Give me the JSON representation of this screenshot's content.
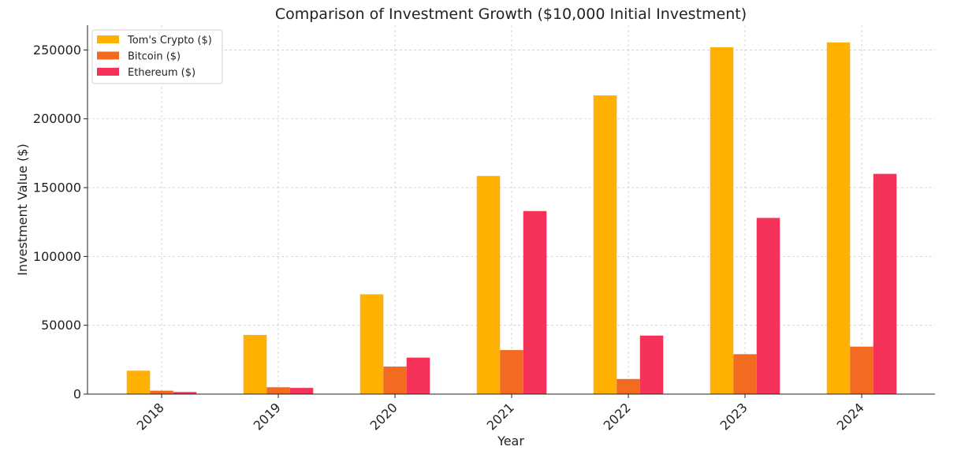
{
  "chart_data": {
    "type": "bar",
    "title": "Comparison of Investment Growth ($10,000 Initial Investment)",
    "xlabel": "Year",
    "ylabel": "Investment Value ($)",
    "categories": [
      "2018",
      "2019",
      "2020",
      "2021",
      "2022",
      "2023",
      "2024"
    ],
    "series": [
      {
        "name": "Tom's Crypto ($)",
        "color": "#ffb000",
        "values": [
          17000,
          43000,
          72500,
          158500,
          217000,
          252000,
          255500
        ]
      },
      {
        "name": "Bitcoin ($)",
        "color": "#f26b21",
        "values": [
          2500,
          5000,
          20000,
          32000,
          11000,
          29000,
          34500
        ]
      },
      {
        "name": "Ethereum ($)",
        "color": "#f5325a",
        "values": [
          1500,
          4500,
          26500,
          133000,
          42500,
          128000,
          160000
        ]
      }
    ],
    "ylim": [
      0,
      268000
    ],
    "yticks": [
      0,
      50000,
      100000,
      150000,
      200000,
      250000
    ],
    "ytick_labels": [
      "0",
      "50000",
      "100000",
      "150000",
      "200000",
      "250000"
    ],
    "grid": true,
    "legend_position": "top-left",
    "x_tick_rotation": "45 degrees"
  }
}
